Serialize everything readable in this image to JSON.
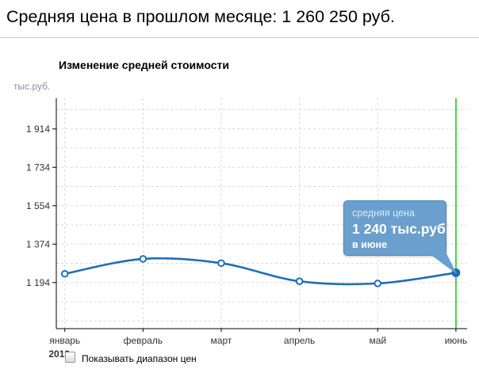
{
  "header": {
    "title": "Средняя цена в прошлом месяце: 1 260 250 руб."
  },
  "chart": {
    "title": "Изменение средней стоимости",
    "y_unit": "тыс.руб."
  },
  "tooltip": {
    "line1": "средняя цена",
    "line2": "1 240 тыс.руб.",
    "line3": "в июне"
  },
  "controls": {
    "show_range_label": "Показывать диапазон цен",
    "checkbox_checked": false
  },
  "colors": {
    "line": "#1e6fb8",
    "marker_open_fill": "#ffffff",
    "current_month_line": "#44d544",
    "tooltip_bg": "#6b9fcd",
    "tooltip_border": "#5388b8",
    "grid": "#d9d9d9",
    "axis": "#000000",
    "tick_text": "#333333"
  },
  "chart_data": {
    "type": "line",
    "title": "Изменение средней стоимости",
    "ylabel": "тыс.руб.",
    "categories": [
      "январь",
      "февраль",
      "март",
      "апрель",
      "май",
      "июнь"
    ],
    "year_label": "2013",
    "values": [
      1235,
      1305,
      1285,
      1200,
      1190,
      1240
    ],
    "yticks": [
      1194,
      1374,
      1554,
      1734,
      1914
    ],
    "ylim": [
      978,
      2058
    ],
    "grid_min": 1014,
    "grid_max": 2004,
    "grid_step": 90,
    "grid_style": "dashed, horizontal minor every 90 + vertical per month",
    "legend_position": "none",
    "highlight": {
      "category": "июнь",
      "value": 1240,
      "note": "vertical green marker line on current month, last point filled"
    },
    "annotation": {
      "text": [
        "средняя цена",
        "1 240 тыс.руб.",
        "в июне"
      ],
      "attached_to": "июнь"
    }
  }
}
